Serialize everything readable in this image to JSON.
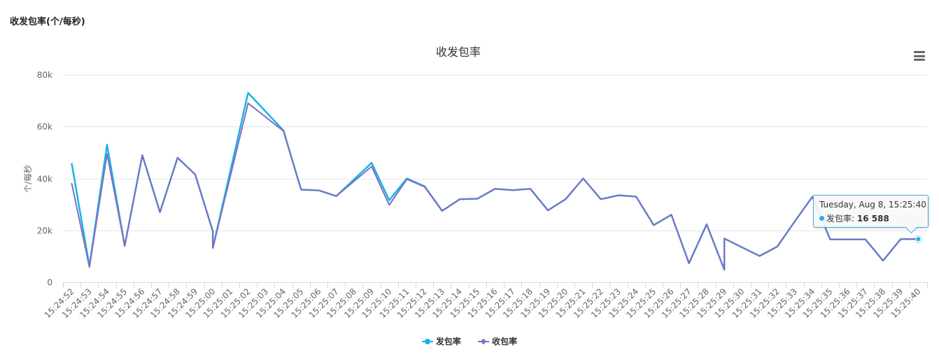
{
  "panel": {
    "title": "收发包率(个/每秒)"
  },
  "tooltip": {
    "date": "Tuesday, Aug 8, 15:25:40",
    "series": "发包率",
    "sep": ": ",
    "value": "16 588"
  },
  "colors": {
    "send": "#1ab3e8",
    "recv": "#7e6fbf",
    "grid": "#e6e6e6",
    "axis": "#ccd6eb",
    "text": "#666666"
  },
  "chart_data": {
    "type": "line",
    "title": "收发包率",
    "ylabel": "个/每秒",
    "xlabel": "",
    "ylim": [
      0,
      80000
    ],
    "yticks": [
      0,
      20000,
      40000,
      60000,
      80000
    ],
    "ytick_labels": [
      "0",
      "20k",
      "40k",
      "60k",
      "80k"
    ],
    "legend_position": "bottom-center",
    "categories": [
      "15:24:52",
      "15:24:53",
      "15:24:54",
      "15:24:55",
      "15:24:56",
      "15:24:57",
      "15:24:58",
      "15:24:59",
      "15:25:00",
      "15:25:01",
      "15:25:02",
      "15:25:03",
      "15:25:04",
      "15:25:05",
      "15:25:06",
      "15:25:07",
      "15:25:08",
      "15:25:09",
      "15:25:10",
      "15:25:11",
      "15:25:12",
      "15:25:13",
      "15:25:14",
      "15:25:15",
      "15:25:16",
      "15:25:17",
      "15:25:18",
      "15:25:19",
      "15:25:20",
      "15:25:21",
      "15:25:22",
      "15:25:23",
      "15:25:24",
      "15:25:25",
      "15:25:26",
      "15:25:27",
      "15:25:28",
      "15:25:29",
      "15:25:30",
      "15:25:31",
      "15:25:32",
      "15:25:33",
      "15:25:34",
      "15:25:35",
      "15:25:36",
      "15:25:37",
      "15:25:38",
      "15:25:39",
      "15:25:40"
    ],
    "series": [
      {
        "name": "发包率",
        "points": [
          {
            "x": "15:24:52",
            "y": 45600
          },
          {
            "x": "15:24:53",
            "y": 6200
          },
          {
            "x": "15:24:54",
            "y": 53000
          },
          {
            "x": "15:24:55",
            "y": 14000
          },
          {
            "x": "15:24:56",
            "y": 49000
          },
          {
            "x": "15:24:57",
            "y": 27000
          },
          {
            "x": "15:24:58",
            "y": 48000
          },
          {
            "x": "15:24:59",
            "y": 41500
          },
          {
            "x": "15:25:00",
            "y": 19600
          },
          {
            "x": "15:25:00",
            "y": 13200
          },
          {
            "x": "15:25:02",
            "y": 73000
          },
          {
            "x": "15:25:04",
            "y": 58500
          },
          {
            "x": "15:25:05",
            "y": 35700
          },
          {
            "x": "15:25:06",
            "y": 35400
          },
          {
            "x": "15:25:07",
            "y": 33200
          },
          {
            "x": "15:25:09",
            "y": 46000
          },
          {
            "x": "15:25:10",
            "y": 31600
          },
          {
            "x": "15:25:11",
            "y": 40000
          },
          {
            "x": "15:25:12",
            "y": 37000
          },
          {
            "x": "15:25:13",
            "y": 27500
          },
          {
            "x": "15:25:14",
            "y": 32000
          },
          {
            "x": "15:25:15",
            "y": 32200
          },
          {
            "x": "15:25:16",
            "y": 36000
          },
          {
            "x": "15:25:17",
            "y": 35500
          },
          {
            "x": "15:25:18",
            "y": 36000
          },
          {
            "x": "15:25:19",
            "y": 27700
          },
          {
            "x": "15:25:20",
            "y": 32000
          },
          {
            "x": "15:25:21",
            "y": 40000
          },
          {
            "x": "15:25:22",
            "y": 32000
          },
          {
            "x": "15:25:23",
            "y": 33500
          },
          {
            "x": "15:25:24",
            "y": 33000
          },
          {
            "x": "15:25:25",
            "y": 22000
          },
          {
            "x": "15:25:26",
            "y": 26000
          },
          {
            "x": "15:25:27",
            "y": 7300
          },
          {
            "x": "15:25:28",
            "y": 22300
          },
          {
            "x": "15:25:29",
            "y": 4800
          },
          {
            "x": "15:25:29",
            "y": 16800
          },
          {
            "x": "15:25:31",
            "y": 10100
          },
          {
            "x": "15:25:32",
            "y": 13700
          },
          {
            "x": "15:25:33",
            "y": 23500
          },
          {
            "x": "15:25:34",
            "y": 33000
          },
          {
            "x": "15:25:35",
            "y": 16500
          },
          {
            "x": "15:25:36",
            "y": 16500
          },
          {
            "x": "15:25:37",
            "y": 16500
          },
          {
            "x": "15:25:38",
            "y": 8300
          },
          {
            "x": "15:25:39",
            "y": 16600
          },
          {
            "x": "15:25:40",
            "y": 16588
          }
        ]
      },
      {
        "name": "收包率",
        "points": [
          {
            "x": "15:24:52",
            "y": 38000
          },
          {
            "x": "15:24:53",
            "y": 5800
          },
          {
            "x": "15:24:54",
            "y": 49500
          },
          {
            "x": "15:24:55",
            "y": 14000
          },
          {
            "x": "15:24:56",
            "y": 49000
          },
          {
            "x": "15:24:57",
            "y": 27000
          },
          {
            "x": "15:24:58",
            "y": 48000
          },
          {
            "x": "15:24:59",
            "y": 41500
          },
          {
            "x": "15:25:00",
            "y": 19600
          },
          {
            "x": "15:25:00",
            "y": 13200
          },
          {
            "x": "15:25:02",
            "y": 69000
          },
          {
            "x": "15:25:04",
            "y": 58300
          },
          {
            "x": "15:25:05",
            "y": 35700
          },
          {
            "x": "15:25:06",
            "y": 35400
          },
          {
            "x": "15:25:07",
            "y": 33200
          },
          {
            "x": "15:25:09",
            "y": 44600
          },
          {
            "x": "15:25:10",
            "y": 29800
          },
          {
            "x": "15:25:11",
            "y": 39700
          },
          {
            "x": "15:25:12",
            "y": 36800
          },
          {
            "x": "15:25:13",
            "y": 27500
          },
          {
            "x": "15:25:14",
            "y": 32000
          },
          {
            "x": "15:25:15",
            "y": 32200
          },
          {
            "x": "15:25:16",
            "y": 36000
          },
          {
            "x": "15:25:17",
            "y": 35500
          },
          {
            "x": "15:25:18",
            "y": 36000
          },
          {
            "x": "15:25:19",
            "y": 27700
          },
          {
            "x": "15:25:20",
            "y": 32000
          },
          {
            "x": "15:25:21",
            "y": 40000
          },
          {
            "x": "15:25:22",
            "y": 32000
          },
          {
            "x": "15:25:23",
            "y": 33500
          },
          {
            "x": "15:25:24",
            "y": 33000
          },
          {
            "x": "15:25:25",
            "y": 22000
          },
          {
            "x": "15:25:26",
            "y": 26000
          },
          {
            "x": "15:25:27",
            "y": 7300
          },
          {
            "x": "15:25:28",
            "y": 22300
          },
          {
            "x": "15:25:29",
            "y": 4800
          },
          {
            "x": "15:25:29",
            "y": 16800
          },
          {
            "x": "15:25:31",
            "y": 10100
          },
          {
            "x": "15:25:32",
            "y": 13700
          },
          {
            "x": "15:25:33",
            "y": 23500
          },
          {
            "x": "15:25:34",
            "y": 33000
          },
          {
            "x": "15:25:35",
            "y": 16500
          },
          {
            "x": "15:25:36",
            "y": 16500
          },
          {
            "x": "15:25:37",
            "y": 16500
          },
          {
            "x": "15:25:38",
            "y": 8300
          },
          {
            "x": "15:25:39",
            "y": 16600
          },
          {
            "x": "15:25:40",
            "y": 16588
          }
        ]
      }
    ],
    "highlight": {
      "series": "发包率",
      "x": "15:25:40",
      "y": 16588
    }
  }
}
